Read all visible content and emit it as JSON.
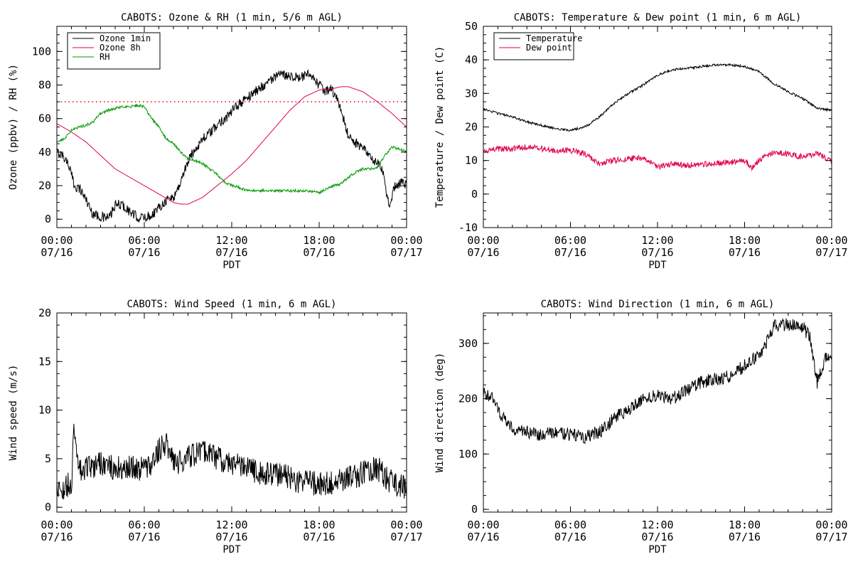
{
  "colors": {
    "black": "#000000",
    "crimson": "#e0004f",
    "green": "#009900",
    "red_dotted": "#e00000"
  },
  "chart_data": [
    {
      "type": "line",
      "title": "CABOTS: Ozone & RH (1 min, 5/6 m AGL)",
      "xlabel": "PDT",
      "ylabel": "Ozone (ppbv) / RH (%)",
      "xlim": [
        0,
        24
      ],
      "ylim": [
        -5,
        115
      ],
      "yticks": [
        0,
        20,
        40,
        60,
        80,
        100
      ],
      "xtick_labels": [
        [
          "00:00",
          "07/16"
        ],
        [
          "06:00",
          "07/16"
        ],
        [
          "12:00",
          "07/16"
        ],
        [
          "18:00",
          "07/16"
        ],
        [
          "00:00",
          "07/17"
        ]
      ],
      "reference_line": {
        "y": 70,
        "style": "dotted",
        "color": "#e00000"
      },
      "legend": {
        "position": "top-left",
        "box": true
      },
      "series": [
        {
          "name": "Ozone 1min",
          "color": "#000000",
          "noise": 3,
          "x": [
            0,
            0.4,
            0.8,
            1.2,
            1.6,
            2.0,
            2.4,
            2.8,
            3.2,
            3.6,
            4.0,
            4.4,
            4.8,
            5.2,
            5.6,
            6.0,
            6.4,
            6.8,
            7.2,
            7.6,
            8.0,
            8.4,
            8.8,
            9.2,
            9.6,
            10.0,
            10.6,
            11.2,
            11.8,
            12.4,
            13.0,
            13.6,
            14.2,
            14.8,
            15.4,
            16.0,
            16.6,
            17.2,
            17.8,
            18.4,
            18.8,
            19.2,
            19.6,
            20.0,
            20.4,
            20.8,
            21.2,
            21.6,
            22.0,
            22.4,
            22.6,
            22.8,
            23.2,
            23.6,
            24.0
          ],
          "values": [
            40,
            38,
            33,
            20,
            18,
            12,
            4,
            2,
            1,
            1,
            8,
            9,
            6,
            3,
            1,
            1,
            2,
            5,
            9,
            12,
            13,
            20,
            30,
            38,
            43,
            48,
            52,
            58,
            62,
            68,
            72,
            76,
            80,
            84,
            86,
            86,
            84,
            86,
            82,
            76,
            78,
            72,
            62,
            50,
            46,
            44,
            40,
            36,
            33,
            28,
            15,
            8,
            20,
            22,
            20
          ]
        },
        {
          "name": "Ozone 8h",
          "color": "#e0004f",
          "noise": 0,
          "x": [
            0,
            1,
            2,
            3,
            4,
            5,
            6,
            7,
            8,
            8.5,
            9,
            10,
            11,
            12,
            13,
            14,
            15,
            16,
            17,
            18,
            19,
            19.5,
            20,
            21,
            22,
            23,
            24
          ],
          "values": [
            57,
            52,
            46,
            38,
            30,
            25,
            20,
            15,
            10,
            9,
            9,
            13,
            20,
            27,
            35,
            45,
            55,
            65,
            73,
            77,
            78,
            79,
            79,
            76,
            70,
            63,
            55
          ]
        },
        {
          "name": "RH",
          "color": "#009900",
          "noise": 0.8,
          "x": [
            0,
            0.5,
            1,
            1.5,
            2,
            2.5,
            3,
            3.5,
            4,
            4.5,
            5,
            5.5,
            6,
            6.5,
            7,
            7.5,
            8,
            8.5,
            9,
            9.5,
            10,
            10.5,
            11,
            11.5,
            12,
            12.5,
            13,
            14,
            15,
            16,
            17,
            18,
            18.5,
            19,
            19.5,
            20,
            20.5,
            21,
            21.5,
            22,
            22.5,
            23,
            23.5,
            24
          ],
          "values": [
            46,
            48,
            53,
            55,
            56,
            58,
            63,
            65,
            66,
            67,
            67,
            68,
            67,
            60,
            55,
            48,
            45,
            40,
            36,
            35,
            33,
            30,
            27,
            22,
            20,
            19,
            17,
            17,
            17,
            17,
            17,
            16,
            18,
            20,
            21,
            25,
            28,
            30,
            30,
            31,
            38,
            43,
            42,
            40
          ]
        }
      ]
    },
    {
      "type": "line",
      "title": "CABOTS: Temperature & Dew point (1 min, 6 m AGL)",
      "xlabel": "PDT",
      "ylabel": "Temperature / Dew point (C)",
      "xlim": [
        0,
        24
      ],
      "ylim": [
        -10,
        50
      ],
      "yticks": [
        -10,
        0,
        10,
        20,
        30,
        40,
        50
      ],
      "xtick_labels": [
        [
          "00:00",
          "07/16"
        ],
        [
          "06:00",
          "07/16"
        ],
        [
          "12:00",
          "07/16"
        ],
        [
          "18:00",
          "07/16"
        ],
        [
          "00:00",
          "07/17"
        ]
      ],
      "legend": {
        "position": "top-left",
        "box": true
      },
      "series": [
        {
          "name": "Temperature",
          "color": "#000000",
          "noise": 0.35,
          "x": [
            0,
            1,
            2,
            3,
            4,
            5,
            6,
            7,
            8,
            9,
            10,
            11,
            12,
            13,
            14,
            15,
            16,
            17,
            18,
            19,
            20,
            21,
            22,
            23,
            24
          ],
          "values": [
            25.5,
            24,
            23,
            21.5,
            20.5,
            19.5,
            19,
            20,
            23,
            27,
            30,
            32.5,
            35.5,
            37,
            37.5,
            38,
            38.5,
            38.5,
            38,
            36.5,
            33,
            30.5,
            28.5,
            25.5,
            25
          ]
        },
        {
          "name": "Dew point",
          "color": "#e0004f",
          "noise": 0.9,
          "x": [
            0,
            1,
            2,
            3,
            4,
            5,
            6,
            7,
            8,
            9,
            10,
            11,
            12,
            13,
            14,
            15,
            16,
            17,
            18,
            18.5,
            19,
            20,
            21,
            22,
            23,
            24
          ],
          "values": [
            13,
            13.5,
            13.5,
            14,
            13.5,
            13,
            13,
            12,
            9,
            10,
            10.5,
            11,
            8,
            9,
            8.5,
            9,
            9,
            9.5,
            10,
            8,
            10,
            12.5,
            12,
            11,
            12,
            10
          ]
        }
      ]
    },
    {
      "type": "line",
      "title": "CABOTS: Wind Speed (1 min, 6 m AGL)",
      "xlabel": "PDT",
      "ylabel": "Wind speed (m/s)",
      "xlim": [
        0,
        24
      ],
      "ylim": [
        -0.5,
        20
      ],
      "yticks": [
        0,
        5,
        10,
        15,
        20
      ],
      "xtick_labels": [
        [
          "00:00",
          "07/16"
        ],
        [
          "06:00",
          "07/16"
        ],
        [
          "12:00",
          "07/16"
        ],
        [
          "18:00",
          "07/16"
        ],
        [
          "00:00",
          "07/17"
        ]
      ],
      "series": [
        {
          "name": "",
          "color": "#000000",
          "noise": 1.3,
          "x": [
            0,
            0.5,
            1.0,
            1.2,
            1.5,
            2,
            3,
            4,
            5,
            6,
            6.5,
            7,
            7.5,
            8,
            9,
            10,
            11,
            12,
            13,
            14,
            15,
            16,
            17,
            18,
            19,
            20,
            21,
            22,
            23,
            24
          ],
          "values": [
            2,
            2,
            2.5,
            8.5,
            4,
            4,
            4.5,
            4,
            4,
            4,
            4.5,
            6,
            6.5,
            4.5,
            5,
            6,
            5,
            4.5,
            4,
            3.5,
            3.5,
            3,
            2.5,
            2.5,
            2.5,
            3,
            3.5,
            4,
            2.5,
            2
          ]
        }
      ]
    },
    {
      "type": "line",
      "title": "CABOTS: Wind Direction (1 min, 6 m AGL)",
      "xlabel": "PDT",
      "ylabel": "Wind direction (deg)",
      "xlim": [
        0,
        24
      ],
      "ylim": [
        -5,
        355
      ],
      "yticks": [
        0,
        100,
        200,
        300
      ],
      "xtick_labels": [
        [
          "00:00",
          "07/16"
        ],
        [
          "06:00",
          "07/16"
        ],
        [
          "12:00",
          "07/16"
        ],
        [
          "18:00",
          "07/16"
        ],
        [
          "00:00",
          "07/17"
        ]
      ],
      "series": [
        {
          "name": "",
          "color": "#000000",
          "noise": 12,
          "x": [
            0,
            0.5,
            1,
            1.5,
            2,
            3,
            4,
            5,
            6,
            7,
            8,
            8.5,
            9,
            10,
            11,
            12,
            13,
            14,
            15,
            16,
            17,
            18,
            18.5,
            19,
            19.5,
            20,
            21,
            22,
            22.5,
            23,
            23.5,
            24
          ],
          "values": [
            210,
            205,
            180,
            160,
            145,
            140,
            135,
            140,
            135,
            130,
            140,
            150,
            165,
            180,
            200,
            205,
            200,
            215,
            230,
            235,
            240,
            260,
            270,
            280,
            300,
            330,
            335,
            330,
            310,
            230,
            270,
            280
          ]
        }
      ]
    }
  ]
}
